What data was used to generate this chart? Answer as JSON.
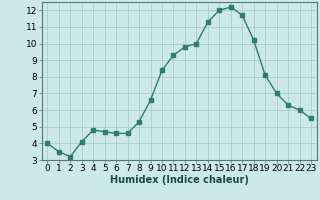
{
  "x": [
    0,
    1,
    2,
    3,
    4,
    5,
    6,
    7,
    8,
    9,
    10,
    11,
    12,
    13,
    14,
    15,
    16,
    17,
    18,
    19,
    20,
    21,
    22,
    23
  ],
  "y": [
    4.0,
    3.5,
    3.2,
    4.1,
    4.8,
    4.7,
    4.6,
    4.6,
    5.3,
    6.6,
    8.4,
    9.3,
    9.8,
    10.0,
    11.3,
    12.0,
    12.2,
    11.7,
    10.2,
    8.1,
    7.0,
    6.3,
    6.0,
    5.5
  ],
  "line_color": "#2e7d6e",
  "bg_color": "#cce8e8",
  "grid_color": "#aacccc",
  "xlabel": "Humidex (Indice chaleur)",
  "xlabel_color": "#1a4a4a",
  "xlabel_fontsize": 7,
  "tick_fontsize": 6.5,
  "ylim": [
    3,
    12.5
  ],
  "xlim": [
    -0.5,
    23.5
  ],
  "yticks": [
    3,
    4,
    5,
    6,
    7,
    8,
    9,
    10,
    11,
    12
  ],
  "xticks": [
    0,
    1,
    2,
    3,
    4,
    5,
    6,
    7,
    8,
    9,
    10,
    11,
    12,
    13,
    14,
    15,
    16,
    17,
    18,
    19,
    20,
    21,
    22,
    23
  ],
  "marker": "s",
  "marker_size": 2.5,
  "linewidth": 1.0
}
